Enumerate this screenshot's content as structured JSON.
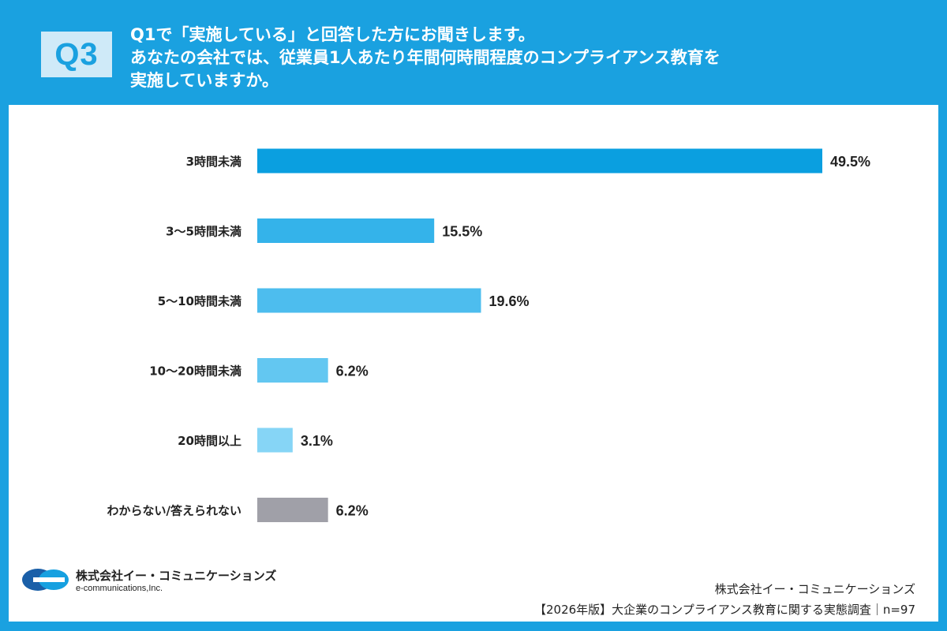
{
  "header": {
    "badge": "Q3",
    "lines": [
      "Q1で「実施している」と回答した方にお聞きします。",
      "あなたの会社では、従業員1人あたり年間何時間程度のコンプライアンス教育を",
      "実施していますか。"
    ]
  },
  "chart_data": {
    "type": "bar",
    "orientation": "horizontal",
    "title": "",
    "categories": [
      "3時間未満",
      "3〜5時間未満",
      "5〜10時間未満",
      "10〜20時間未満",
      "20時間以上",
      "わからない/答えられない"
    ],
    "values": [
      49.5,
      15.5,
      19.6,
      6.2,
      3.1,
      6.2
    ],
    "value_labels": [
      "49.5%",
      "15.5%",
      "19.6%",
      "6.2%",
      "3.1%",
      "6.2%"
    ],
    "colors": [
      "#0a9fe0",
      "#34b3ea",
      "#4dbdee",
      "#63c7f1",
      "#86d5f6",
      "#a0a0a8"
    ],
    "xlabel": "",
    "ylabel": "",
    "xlim": [
      0,
      49.5
    ],
    "grid": false
  },
  "footer": {
    "logo_name": "株式会社イー・コミュニケーションズ",
    "logo_en": "e-communications,Inc.",
    "company": "株式会社イー・コミュニケーションズ",
    "survey": "【2026年版】大企業のコンプライアンス教育に関する実態調査｜n=97"
  }
}
